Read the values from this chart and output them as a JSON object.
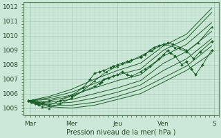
{
  "title": "",
  "xlabel": "Pression niveau de la mer( hPa )",
  "bg_color": "#cce8d8",
  "grid_color_major": "#a0c8b0",
  "grid_color_minor": "#b8d8c4",
  "line_color": "#1a5e28",
  "ylim": [
    1004.5,
    1012.3
  ],
  "xlim": [
    -0.05,
    4.2
  ],
  "yticks": [
    1005,
    1006,
    1007,
    1008,
    1009,
    1010,
    1011,
    1012
  ],
  "xtick_labels": [
    "Mar",
    "Mer",
    "Jeu",
    "Ven",
    "S"
  ],
  "xtick_positions": [
    0.1,
    1.0,
    2.0,
    3.0,
    4.1
  ],
  "lines": [
    {
      "x": [
        0.05,
        0.12,
        0.2,
        0.28,
        0.38,
        0.5,
        1.0,
        1.5,
        1.6,
        1.65,
        1.7,
        1.8,
        1.9,
        2.0,
        2.1,
        2.2,
        2.3,
        2.5,
        2.6,
        2.7,
        2.9,
        3.0,
        3.1,
        3.15,
        3.25,
        3.4,
        3.5,
        3.6,
        3.7,
        3.85,
        4.05
      ],
      "y": [
        1005.5,
        1005.4,
        1005.3,
        1005.2,
        1005.4,
        1005.5,
        1005.8,
        1006.5,
        1006.7,
        1006.8,
        1007.0,
        1007.1,
        1007.2,
        1007.3,
        1007.5,
        1007.3,
        1007.2,
        1007.5,
        1007.7,
        1007.9,
        1008.4,
        1008.7,
        1009.0,
        1008.8,
        1008.6,
        1008.0,
        1008.2,
        1007.7,
        1007.3,
        1008.0,
        1009.0
      ],
      "marker": "D",
      "ms": 2
    },
    {
      "x": [
        0.05,
        0.5,
        1.0,
        1.5,
        2.0,
        2.5,
        3.0,
        3.5,
        4.05
      ],
      "y": [
        1005.5,
        1005.7,
        1006.1,
        1006.7,
        1007.3,
        1007.7,
        1009.0,
        1009.8,
        1011.6
      ],
      "marker": null
    },
    {
      "x": [
        0.05,
        0.5,
        1.0,
        1.5,
        2.0,
        2.5,
        3.0,
        3.5,
        4.05
      ],
      "y": [
        1005.5,
        1005.8,
        1006.3,
        1007.0,
        1007.6,
        1008.1,
        1009.3,
        1010.1,
        1011.9
      ],
      "marker": null
    },
    {
      "x": [
        0.05,
        0.5,
        1.0,
        1.5,
        2.0,
        2.5,
        3.0,
        3.5,
        4.05
      ],
      "y": [
        1005.5,
        1005.6,
        1005.9,
        1006.4,
        1006.9,
        1007.3,
        1008.6,
        1009.4,
        1010.9
      ],
      "marker": null
    },
    {
      "x": [
        0.05,
        0.5,
        1.0,
        1.5,
        2.0,
        2.5,
        3.0,
        3.5,
        4.05
      ],
      "y": [
        1005.5,
        1005.4,
        1005.6,
        1006.0,
        1006.4,
        1006.9,
        1008.1,
        1008.9,
        1010.3
      ],
      "marker": null
    },
    {
      "x": [
        0.05,
        0.5,
        1.0,
        1.5,
        2.0,
        2.5,
        3.0,
        3.5,
        4.05
      ],
      "y": [
        1005.5,
        1005.3,
        1005.4,
        1005.7,
        1006.1,
        1006.6,
        1007.6,
        1008.4,
        1009.8
      ],
      "marker": null
    },
    {
      "x": [
        0.05,
        0.5,
        1.0,
        1.5,
        2.0,
        2.5,
        3.0,
        3.5,
        4.05
      ],
      "y": [
        1005.5,
        1005.2,
        1005.2,
        1005.4,
        1005.8,
        1006.3,
        1007.1,
        1007.9,
        1009.3
      ],
      "marker": null
    },
    {
      "x": [
        0.05,
        0.5,
        1.0,
        1.5,
        2.0,
        2.5,
        3.0,
        3.5,
        4.05
      ],
      "y": [
        1005.5,
        1005.1,
        1005.0,
        1005.2,
        1005.6,
        1006.0,
        1006.8,
        1007.6,
        1008.8
      ],
      "marker": null
    },
    {
      "x": [
        0.05,
        0.15,
        0.25,
        0.35,
        0.5,
        0.75,
        1.0,
        1.25,
        1.5,
        1.75,
        2.0,
        2.25,
        2.5,
        2.75,
        3.0,
        3.25,
        3.5,
        3.75,
        4.05
      ],
      "y": [
        1005.5,
        1005.4,
        1005.3,
        1005.1,
        1005.0,
        1005.3,
        1005.7,
        1006.2,
        1006.9,
        1007.5,
        1007.9,
        1008.2,
        1008.6,
        1009.0,
        1009.4,
        1009.2,
        1008.9,
        1009.5,
        1010.6
      ],
      "marker": "^",
      "ms": 2.2
    },
    {
      "x": [
        0.05,
        0.15,
        0.25,
        0.35,
        0.5,
        0.75,
        1.0,
        1.25,
        1.4,
        1.5,
        1.6,
        1.7,
        1.85,
        1.9,
        2.0,
        2.1,
        2.2,
        2.3,
        2.5,
        2.6,
        2.7,
        2.8,
        2.9,
        3.0,
        3.1,
        3.2,
        3.35,
        3.5,
        3.65,
        3.8,
        4.05
      ],
      "y": [
        1005.5,
        1005.5,
        1005.4,
        1005.3,
        1005.2,
        1005.5,
        1005.9,
        1006.4,
        1007.0,
        1007.4,
        1007.5,
        1007.6,
        1007.8,
        1007.9,
        1008.0,
        1008.1,
        1008.2,
        1008.3,
        1008.5,
        1008.7,
        1009.0,
        1009.2,
        1009.3,
        1009.4,
        1009.5,
        1009.4,
        1009.2,
        1009.0,
        1008.4,
        1008.9,
        1009.6
      ],
      "marker": "D",
      "ms": 2
    }
  ]
}
